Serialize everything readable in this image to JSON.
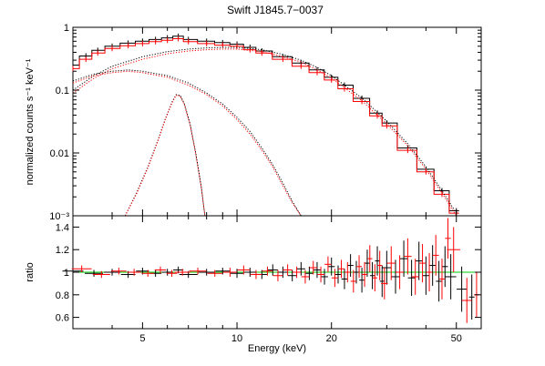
{
  "chart_data": {
    "type": "scatter",
    "title": "Swift J1845.7−0037",
    "xlabel": "Energy (keV)",
    "x_scale": "log",
    "xlim": [
      3,
      60
    ],
    "x_ticks": [
      5,
      10,
      20,
      50
    ],
    "x_tick_labels": [
      "5",
      "10",
      "20",
      "50"
    ],
    "colors": {
      "detector_1": "#000000",
      "detector_2": "#ff0000",
      "unity_line": "#00cc00"
    },
    "panels": [
      {
        "name": "spectrum",
        "ylabel": "normalized counts s⁻¹ keV⁻¹",
        "y_scale": "log",
        "ylim": [
          0.001,
          1
        ],
        "y_ticks": [
          0.001,
          0.01,
          0.1,
          1
        ],
        "y_tick_labels": [
          "10⁻³",
          "0.01",
          "0.1",
          "1"
        ],
        "series": [
          {
            "color": "#000000",
            "style": "step-data",
            "x": [
              3,
              3.3,
              3.6,
              4,
              4.5,
              5,
              5.5,
              6,
              6.5,
              7,
              8,
              9,
              10,
              11,
              12,
              14,
              16,
              18,
              20,
              22,
              25,
              28,
              30,
              35,
              40,
              45,
              50
            ],
            "y": [
              0.25,
              0.35,
              0.43,
              0.5,
              0.56,
              0.6,
              0.64,
              0.68,
              0.72,
              0.64,
              0.6,
              0.57,
              0.54,
              0.48,
              0.42,
              0.34,
              0.27,
              0.21,
              0.16,
              0.12,
              0.074,
              0.043,
              0.03,
              0.012,
              0.0055,
              0.0025,
              0.0012
            ]
          },
          {
            "color": "#ff0000",
            "style": "step-data",
            "x": [
              3,
              3.3,
              3.6,
              4,
              4.5,
              5,
              5.5,
              6,
              6.5,
              7,
              8,
              9,
              10,
              11,
              12,
              14,
              16,
              18,
              20,
              22,
              25,
              28,
              30,
              35,
              40,
              45,
              50
            ],
            "y": [
              0.22,
              0.31,
              0.39,
              0.46,
              0.51,
              0.55,
              0.59,
              0.62,
              0.66,
              0.59,
              0.55,
              0.52,
              0.5,
              0.44,
              0.39,
              0.31,
              0.24,
              0.19,
              0.145,
              0.105,
              0.066,
              0.039,
              0.027,
              0.011,
              0.005,
              0.0022,
              0.0011
            ]
          },
          {
            "color": "#000000",
            "style": "dotted",
            "x": [
              3,
              3.5,
              4,
              5,
              6,
              7,
              8,
              9,
              10,
              12,
              14,
              16,
              18,
              20,
              25,
              30,
              35,
              40,
              45,
              50
            ],
            "y": [
              0.1,
              0.17,
              0.24,
              0.34,
              0.41,
              0.45,
              0.47,
              0.48,
              0.48,
              0.44,
              0.37,
              0.3,
              0.23,
              0.17,
              0.075,
              0.032,
              0.014,
              0.006,
              0.0025,
              0.0011
            ]
          },
          {
            "color": "#ff0000",
            "style": "dotted",
            "x": [
              3,
              3.5,
              4,
              5,
              6,
              7,
              8,
              9,
              10,
              12,
              14,
              16,
              18,
              20,
              25,
              30,
              35,
              40,
              45,
              50
            ],
            "y": [
              0.09,
              0.155,
              0.22,
              0.31,
              0.38,
              0.42,
              0.44,
              0.45,
              0.45,
              0.41,
              0.34,
              0.28,
              0.21,
              0.155,
              0.068,
              0.029,
              0.013,
              0.0055,
              0.0023,
              0.001
            ]
          },
          {
            "color": "#000000",
            "style": "dotted",
            "x": [
              3,
              3.5,
              4,
              4.5,
              5,
              6,
              7,
              8,
              9,
              10,
              11,
              12,
              13,
              14,
              15,
              16
            ],
            "y": [
              0.14,
              0.18,
              0.2,
              0.21,
              0.2,
              0.17,
              0.13,
              0.09,
              0.06,
              0.037,
              0.022,
              0.012,
              0.0065,
              0.0033,
              0.0017,
              0.001
            ]
          },
          {
            "color": "#ff0000",
            "style": "dotted",
            "x": [
              3,
              3.5,
              4,
              4.5,
              5,
              6,
              7,
              8,
              9,
              10,
              11,
              12,
              13,
              14,
              15,
              16
            ],
            "y": [
              0.13,
              0.17,
              0.19,
              0.2,
              0.19,
              0.16,
              0.12,
              0.085,
              0.056,
              0.034,
              0.02,
              0.011,
              0.006,
              0.003,
              0.0016,
              0.001
            ]
          },
          {
            "color": "#000000",
            "style": "dotted",
            "x": [
              4.4,
              4.8,
              5.2,
              5.6,
              5.9,
              6.2,
              6.4,
              6.6,
              6.8,
              7.1,
              7.4,
              7.7,
              7.9
            ],
            "y": [
              0.001,
              0.0024,
              0.006,
              0.016,
              0.034,
              0.064,
              0.085,
              0.082,
              0.06,
              0.028,
              0.0095,
              0.0028,
              0.001
            ]
          },
          {
            "color": "#ff0000",
            "style": "dotted",
            "x": [
              4.4,
              4.8,
              5.2,
              5.6,
              5.9,
              6.2,
              6.4,
              6.6,
              6.8,
              7.1,
              7.4,
              7.7,
              7.9
            ],
            "y": [
              0.001,
              0.0023,
              0.0058,
              0.0155,
              0.033,
              0.062,
              0.083,
              0.08,
              0.058,
              0.027,
              0.0092,
              0.0027,
              0.001
            ]
          }
        ]
      },
      {
        "name": "ratio",
        "ylabel": "ratio",
        "y_scale": "linear",
        "ylim": [
          0.5,
          1.5
        ],
        "y_ticks": [
          0.6,
          0.8,
          1,
          1.2,
          1.4
        ],
        "y_tick_labels": [
          "0.6",
          "0.8",
          "1",
          "1.2",
          "1.4"
        ],
        "reference_line": 1,
        "series": [
          {
            "color": "#000000",
            "style": "errorbar",
            "x": [
              3,
              3.5,
              4,
              4.5,
              5,
              5.5,
              6,
              6.5,
              7,
              8,
              9,
              10,
              11,
              12,
              13,
              14,
              15,
              16,
              17,
              18,
              19,
              20,
              21,
              22,
              23,
              24,
              25,
              26,
              27,
              28,
              29,
              30,
              32,
              34,
              36,
              38,
              40,
              42,
              44,
              46,
              48,
              52,
              56
            ],
            "y": [
              1.01,
              0.99,
              1.0,
              0.98,
              1.01,
              0.99,
              1.0,
              1.02,
              0.98,
              1.0,
              1.01,
              0.99,
              1.0,
              0.98,
              1.02,
              1.0,
              0.97,
              1.03,
              0.99,
              1.02,
              0.96,
              1.05,
              0.98,
              0.94,
              1.06,
              1.0,
              0.93,
              1.08,
              0.97,
              1.1,
              0.92,
              1.04,
              0.96,
              1.12,
              0.95,
              1.1,
              0.97,
              1.06,
              0.92,
              1.05,
              0.96,
              0.85,
              0.78
            ],
            "err": [
              0.03,
              0.03,
              0.03,
              0.03,
              0.03,
              0.03,
              0.03,
              0.03,
              0.03,
              0.03,
              0.03,
              0.04,
              0.04,
              0.04,
              0.05,
              0.05,
              0.05,
              0.06,
              0.06,
              0.07,
              0.07,
              0.08,
              0.08,
              0.09,
              0.1,
              0.1,
              0.11,
              0.12,
              0.12,
              0.13,
              0.14,
              0.15,
              0.15,
              0.16,
              0.16,
              0.17,
              0.17,
              0.18,
              0.18,
              0.18,
              0.2,
              0.2,
              0.2
            ]
          },
          {
            "color": "#ff0000",
            "style": "errorbar",
            "x": [
              3.2,
              3.7,
              4.2,
              4.7,
              5.2,
              5.7,
              6.2,
              6.7,
              7.5,
              8.5,
              9.5,
              10.5,
              11.5,
              12.5,
              13.5,
              14.5,
              15.5,
              16.5,
              17.5,
              18.5,
              19.5,
              20.5,
              21.5,
              22.5,
              23.5,
              24.5,
              25.5,
              26.5,
              27.5,
              28.5,
              29.5,
              31,
              33,
              35,
              37,
              39,
              41,
              43,
              45,
              47,
              49,
              54,
              58
            ],
            "y": [
              1.03,
              0.98,
              1.01,
              1.0,
              0.99,
              1.02,
              0.99,
              1.0,
              1.01,
              0.99,
              1.0,
              1.02,
              0.98,
              1.01,
              0.97,
              1.02,
              1.0,
              0.96,
              1.04,
              0.98,
              1.07,
              0.95,
              1.03,
              1.0,
              0.92,
              1.05,
              0.98,
              1.12,
              0.95,
              1.06,
              0.9,
              1.08,
              1.0,
              1.14,
              0.96,
              1.08,
              1.0,
              1.15,
              0.94,
              1.3,
              1.2,
              0.75,
              0.8
            ],
            "err": [
              0.03,
              0.03,
              0.03,
              0.03,
              0.03,
              0.03,
              0.03,
              0.03,
              0.03,
              0.03,
              0.04,
              0.04,
              0.04,
              0.04,
              0.05,
              0.05,
              0.05,
              0.06,
              0.06,
              0.07,
              0.07,
              0.08,
              0.08,
              0.09,
              0.1,
              0.1,
              0.11,
              0.12,
              0.12,
              0.13,
              0.14,
              0.15,
              0.15,
              0.16,
              0.16,
              0.17,
              0.17,
              0.18,
              0.18,
              0.18,
              0.2,
              0.2,
              0.2
            ]
          }
        ]
      }
    ]
  }
}
